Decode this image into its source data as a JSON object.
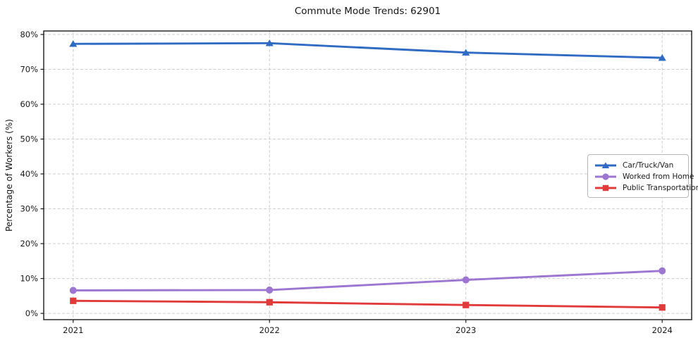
{
  "chart_data": {
    "type": "line",
    "title": "Commute Mode Trends: 62901",
    "xlabel": "",
    "ylabel": "Percentage of Workers (%)",
    "x": [
      2021,
      2022,
      2023,
      2024
    ],
    "x_tick_labels": [
      "2021",
      "2022",
      "2023",
      "2024"
    ],
    "y_ticks": [
      0,
      10,
      20,
      30,
      40,
      50,
      60,
      70,
      80
    ],
    "y_tick_labels": [
      "0%",
      "10%",
      "20%",
      "30%",
      "40%",
      "50%",
      "60%",
      "70%",
      "80%"
    ],
    "xlim": [
      2020.85,
      2024.15
    ],
    "ylim": [
      -1.8,
      81.0
    ],
    "grid": true,
    "legend_position": "right-middle",
    "series": [
      {
        "name": "Car/Truck/Van",
        "marker": "triangle",
        "color": "#2f6bc2",
        "values": [
          77.3,
          77.5,
          74.8,
          73.3
        ]
      },
      {
        "name": "Worked from Home",
        "marker": "circle",
        "color": "#9c76d0",
        "values": [
          6.6,
          6.7,
          9.6,
          12.2
        ]
      },
      {
        "name": "Public Transportation",
        "marker": "square",
        "color": "#e03a3a",
        "values": [
          3.6,
          3.2,
          2.4,
          1.7
        ]
      }
    ]
  },
  "style": {
    "grid_color": "#cfcfcf",
    "spine_color": "#1a1a1a",
    "tick_label_color": "#1a1a1a",
    "background": "#ffffff"
  }
}
